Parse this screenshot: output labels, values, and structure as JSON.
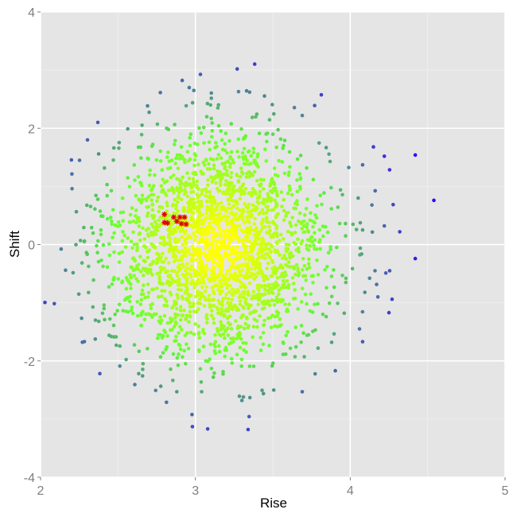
{
  "chart_data": {
    "type": "scatter",
    "title": "",
    "xlabel": "Rise",
    "ylabel": "Shift",
    "xlim": [
      2,
      5
    ],
    "ylim": [
      -4,
      4
    ],
    "x_ticks": [
      2,
      3,
      4,
      5
    ],
    "y_ticks": [
      -4,
      -2,
      0,
      2,
      4
    ],
    "x_tick_labels": [
      "2",
      "3",
      "4",
      "5"
    ],
    "y_tick_labels": [
      "-4",
      "-2",
      "0",
      "2",
      "4"
    ],
    "grid": true,
    "legend": "none",
    "colors": {
      "panel_background": "#e5e5e5",
      "major_grid": "#ffffff",
      "minor_grid": "#f0f0f0",
      "center": "#ffff00",
      "mid": "#66ff33",
      "outlier": "#3300ff",
      "highlight_marker": "#dd0000"
    },
    "color_encoding": "point color shifts from yellow near the center of the cloud through green to blue-violet for the most distant points",
    "cloud": {
      "n_points": 2400,
      "center": [
        3.15,
        -0.05
      ],
      "sd": [
        0.35,
        0.95
      ]
    },
    "points": [
      {
        "x": 2.37,
        "y": 2.1
      },
      {
        "x": 2.27,
        "y": -1.68
      },
      {
        "x": 3.27,
        "y": 3.02
      },
      {
        "x": 3.34,
        "y": -3.18
      },
      {
        "x": 2.96,
        "y": 2.7
      },
      {
        "x": 2.99,
        "y": 2.65
      },
      {
        "x": 3.35,
        "y": 2.62
      },
      {
        "x": 4.54,
        "y": 0.76
      },
      {
        "x": 4.42,
        "y": 1.54
      },
      {
        "x": 4.42,
        "y": -0.24
      },
      {
        "x": 4.32,
        "y": 0.22
      },
      {
        "x": 4.27,
        "y": -0.94
      },
      {
        "x": 4.25,
        "y": -1.17
      },
      {
        "x": 4.23,
        "y": -0.49
      },
      {
        "x": 4.15,
        "y": 1.68
      },
      {
        "x": 4.22,
        "y": 1.52
      },
      {
        "x": 4.16,
        "y": -0.45
      },
      {
        "x": 4.08,
        "y": -1.67
      },
      {
        "x": 4.06,
        "y": -1.45
      },
      {
        "x": 4.08,
        "y": 1.37
      },
      {
        "x": 4.14,
        "y": 0.68
      },
      {
        "x": 2.4,
        "y": -1.18
      },
      {
        "x": 2.41,
        "y": -1.1
      },
      {
        "x": 2.41,
        "y": -1.04
      },
      {
        "x": 2.37,
        "y": 0.78
      },
      {
        "x": 2.43,
        "y": 0.84
      },
      {
        "x": 2.39,
        "y": 0.25
      },
      {
        "x": 2.88,
        "y": -2.53
      },
      {
        "x": 3.04,
        "y": -2.53
      },
      {
        "x": 3.3,
        "y": -2.68
      },
      {
        "x": 3.31,
        "y": -2.62
      },
      {
        "x": 3.69,
        "y": -2.53
      },
      {
        "x": 3.77,
        "y": 2.39
      },
      {
        "x": 3.69,
        "y": 2.22
      }
    ],
    "highlighted": [
      {
        "x": 2.8,
        "y": 0.52
      },
      {
        "x": 2.8,
        "y": 0.38
      },
      {
        "x": 2.82,
        "y": 0.37
      },
      {
        "x": 2.86,
        "y": 0.47
      },
      {
        "x": 2.88,
        "y": 0.4
      },
      {
        "x": 2.9,
        "y": 0.47
      },
      {
        "x": 2.91,
        "y": 0.36
      },
      {
        "x": 2.93,
        "y": 0.47
      },
      {
        "x": 2.94,
        "y": 0.35
      }
    ]
  }
}
